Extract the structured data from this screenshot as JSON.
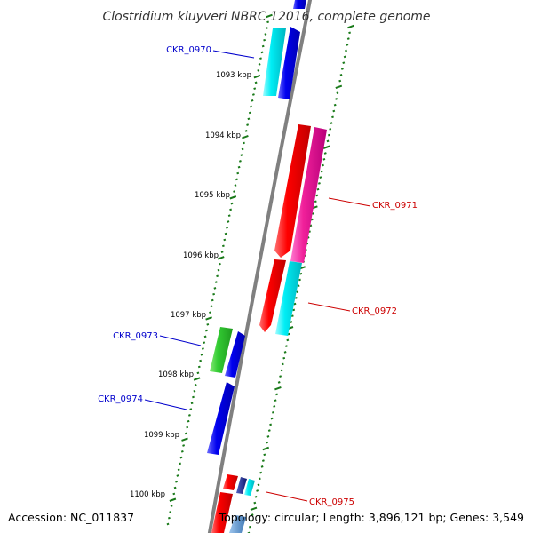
{
  "title": "Clostridium kluyveri NBRC 12016, complete genome",
  "footer": {
    "accession": "Accession: NC_011837",
    "summary": "Topology: circular; Length: 3,896,121 bp; Genes: 3,549"
  },
  "colors": {
    "backbone": "#808080",
    "tick": "#1a7a1a",
    "forward_label": "#0000cc",
    "reverse_label": "#cc0000"
  },
  "kbp_ticks": [
    "1093 kbp",
    "1094 kbp",
    "1095 kbp",
    "1096 kbp",
    "1097 kbp",
    "1098 kbp",
    "1099 kbp",
    "1100 kbp"
  ],
  "gene_labels": [
    {
      "name": "CKR_0970",
      "strand": "forward"
    },
    {
      "name": "CKR_0971",
      "strand": "reverse"
    },
    {
      "name": "CKR_0972",
      "strand": "reverse"
    },
    {
      "name": "CKR_0973",
      "strand": "forward"
    },
    {
      "name": "CKR_0974",
      "strand": "forward"
    },
    {
      "name": "CKR_0975",
      "strand": "reverse"
    }
  ]
}
